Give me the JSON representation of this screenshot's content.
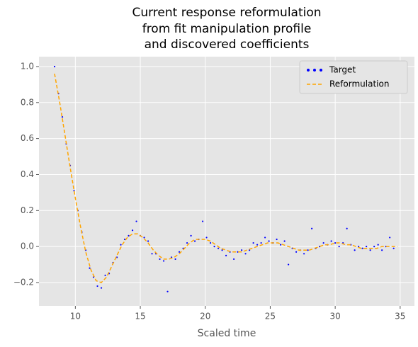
{
  "chart_data": {
    "type": "scatter",
    "title": [
      "Current response reformulation",
      "from fit manipulation profile",
      "and discovered coefficients"
    ],
    "x_label": "Scaled time",
    "xlim": [
      7.2,
      36.1
    ],
    "ylim": [
      -0.33,
      1.055
    ],
    "xticks": [
      10,
      15,
      20,
      25,
      30,
      35
    ],
    "yticks": [
      {
        "value": -0.2,
        "label": "−0.2"
      },
      {
        "value": 0,
        "label": "0.0"
      },
      {
        "value": 0.2,
        "label": "0.2"
      },
      {
        "value": 0.4,
        "label": "0.4"
      },
      {
        "value": 0.6,
        "label": "0.6"
      },
      {
        "value": 0.8,
        "label": "0.8"
      },
      {
        "value": 1,
        "label": "1.0"
      }
    ],
    "grid": true,
    "legend": "upper right",
    "series": [
      {
        "name": "Target",
        "color": "#0000ff",
        "style": "points",
        "x": [
          8.4,
          8.7,
          9.0,
          9.3,
          9.6,
          9.9,
          10.2,
          10.5,
          10.8,
          11.1,
          11.4,
          11.7,
          12.0,
          12.3,
          12.6,
          12.9,
          13.2,
          13.5,
          13.8,
          14.1,
          14.4,
          14.7,
          15.0,
          15.3,
          15.6,
          15.9,
          16.2,
          16.5,
          16.8,
          17.1,
          17.4,
          17.7,
          18.0,
          18.3,
          18.6,
          18.9,
          19.2,
          19.5,
          19.8,
          20.1,
          20.4,
          20.7,
          21.0,
          21.3,
          21.6,
          21.9,
          22.2,
          22.5,
          22.8,
          23.1,
          23.4,
          23.7,
          24.0,
          24.3,
          24.6,
          24.9,
          25.2,
          25.5,
          25.8,
          26.1,
          26.4,
          26.7,
          27.0,
          27.3,
          27.6,
          27.9,
          28.2,
          28.5,
          28.8,
          29.1,
          29.4,
          29.7,
          30.0,
          30.3,
          30.6,
          30.9,
          31.2,
          31.5,
          31.8,
          32.1,
          32.4,
          32.7,
          33.0,
          33.3,
          33.6,
          33.9,
          34.2,
          34.5
        ],
        "values": [
          1.0,
          0.85,
          0.72,
          0.57,
          0.45,
          0.31,
          0.2,
          0.08,
          -0.02,
          -0.12,
          -0.17,
          -0.22,
          -0.23,
          -0.16,
          -0.15,
          -0.09,
          -0.06,
          0.01,
          0.04,
          0.06,
          0.09,
          0.14,
          0.06,
          0.05,
          0.03,
          -0.04,
          -0.04,
          -0.07,
          -0.08,
          -0.25,
          -0.06,
          -0.07,
          -0.03,
          -0.01,
          0.02,
          0.06,
          0.03,
          0.04,
          0.14,
          0.05,
          0.02,
          0.0,
          -0.01,
          -0.02,
          -0.05,
          -0.03,
          -0.07,
          -0.03,
          -0.02,
          -0.04,
          -0.02,
          0.02,
          0.01,
          0.02,
          0.05,
          0.03,
          0.02,
          0.04,
          0.01,
          0.03,
          -0.1,
          -0.01,
          -0.03,
          -0.02,
          -0.04,
          -0.02,
          0.1,
          -0.01,
          0.0,
          0.02,
          0.01,
          0.03,
          0.02,
          0.0,
          0.02,
          0.1,
          0.01,
          -0.02,
          0.0,
          -0.01,
          0.0,
          -0.02,
          0.0,
          0.01,
          -0.02,
          0.0,
          0.05,
          -0.01
        ]
      },
      {
        "name": "Reformulation",
        "color": "#ffa500",
        "style": "dashed",
        "x": [
          8.4,
          8.8,
          9.2,
          9.6,
          10.0,
          10.4,
          10.8,
          11.2,
          11.6,
          12.0,
          12.4,
          12.8,
          13.2,
          13.6,
          14.0,
          14.4,
          14.8,
          15.2,
          15.6,
          16.0,
          16.4,
          16.8,
          17.2,
          17.6,
          18.0,
          18.4,
          18.8,
          19.2,
          19.6,
          20.0,
          20.4,
          20.8,
          21.2,
          21.6,
          22.0,
          22.4,
          22.8,
          23.2,
          23.6,
          24.0,
          24.4,
          24.8,
          25.2,
          25.6,
          26.0,
          26.4,
          26.8,
          27.2,
          27.6,
          28.0,
          28.4,
          28.8,
          29.2,
          29.6,
          30.0,
          30.4,
          30.8,
          31.2,
          31.6,
          32.0,
          32.4,
          32.8,
          33.2,
          33.6,
          34.0,
          34.4,
          34.8
        ],
        "values": [
          0.96,
          0.8,
          0.62,
          0.44,
          0.27,
          0.11,
          -0.03,
          -0.13,
          -0.19,
          -0.2,
          -0.17,
          -0.11,
          -0.05,
          0.01,
          0.05,
          0.07,
          0.07,
          0.05,
          0.02,
          -0.02,
          -0.05,
          -0.07,
          -0.07,
          -0.06,
          -0.04,
          -0.01,
          0.02,
          0.04,
          0.04,
          0.04,
          0.03,
          0.01,
          -0.01,
          -0.02,
          -0.03,
          -0.03,
          -0.03,
          -0.02,
          -0.01,
          0.0,
          0.01,
          0.02,
          0.02,
          0.02,
          0.01,
          0.0,
          -0.01,
          -0.02,
          -0.02,
          -0.02,
          -0.01,
          0.0,
          0.01,
          0.01,
          0.02,
          0.02,
          0.01,
          0.01,
          0.0,
          -0.01,
          -0.01,
          -0.01,
          -0.01,
          0.0,
          0.0,
          0.0,
          0.0
        ]
      }
    ]
  }
}
